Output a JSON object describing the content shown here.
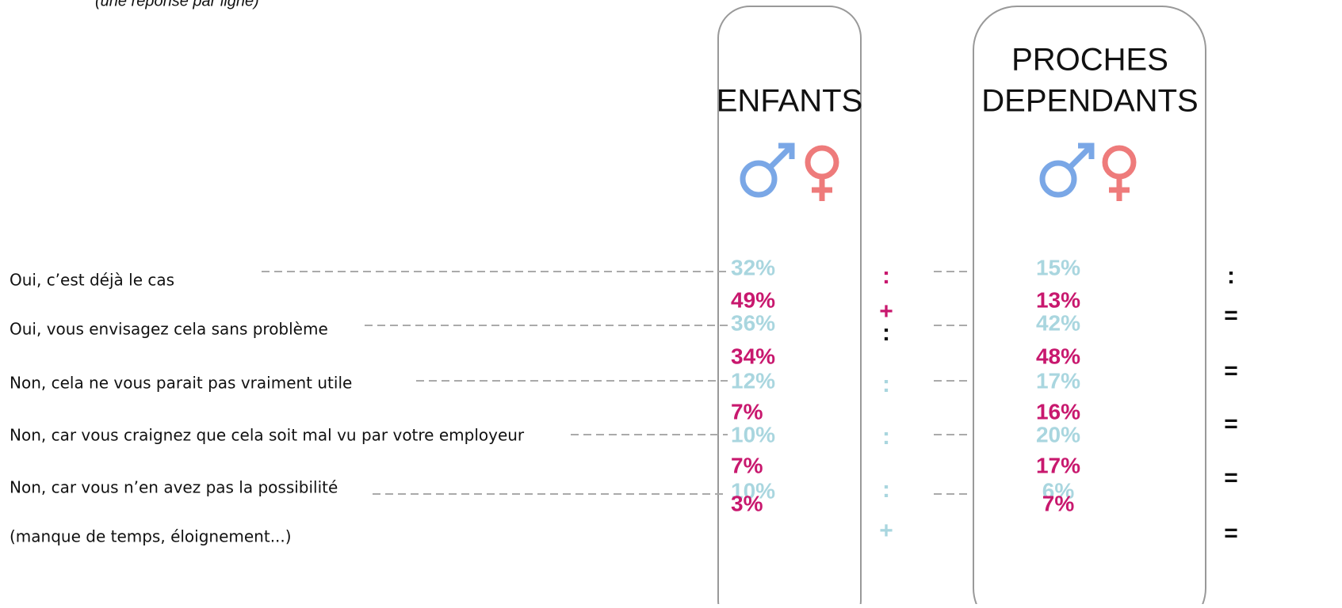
{
  "subtitle": "(une réponse par ligne)",
  "rows": [
    "Oui, c’est déjà le cas",
    "Oui, vous envisagez cela sans problème",
    "Non, cela ne vous parait pas vraiment utile",
    "Non, car vous craignez que cela soit mal vu par votre employeur",
    "Non, car vous n’en avez pas la possibilité",
    "(manque de temps, éloignement...)"
  ],
  "columns": [
    {
      "title": [
        "ENFANTS"
      ],
      "men": {
        "color": "#a9d6df",
        "values": [
          32,
          36,
          12,
          10,
          10
        ],
        "value_labels": [
          "32%",
          "36%",
          "12%",
          "10%",
          "10%"
        ]
      },
      "women": {
        "color": "#c8186e",
        "values": [
          49,
          34,
          7,
          7,
          3
        ],
        "value_labels": [
          "49%",
          "34%",
          "7%",
          "7%",
          "3%"
        ]
      }
    },
    {
      "title": [
        "PROCHES",
        "DEPENDANTS"
      ],
      "men": {
        "color": "#a9d6df",
        "values": [
          15,
          42,
          17,
          20,
          6
        ],
        "value_labels": [
          "15%",
          "42%",
          "17%",
          "20%",
          "6%"
        ]
      },
      "women": {
        "color": "#c8186e",
        "values": [
          13,
          48,
          16,
          17,
          7
        ],
        "value_labels": [
          "13%",
          "48%",
          "16%",
          "17%",
          "7%"
        ]
      }
    }
  ],
  "middle_signs": [
    {
      "text": ":",
      "color": "#c8186e"
    },
    {
      "text": "+",
      "color": "#c8186e"
    },
    {
      "text": ":",
      "color": "#111"
    },
    {
      "text": ":",
      "color": "#a9d6df"
    },
    {
      "text": ":",
      "color": "#a9d6df"
    },
    {
      "text": ":",
      "color": "#a9d6df"
    },
    {
      "text": "+",
      "color": "#a9d6df"
    }
  ],
  "right_signs": [
    ":",
    "=",
    "=",
    "=",
    "=",
    "="
  ]
}
